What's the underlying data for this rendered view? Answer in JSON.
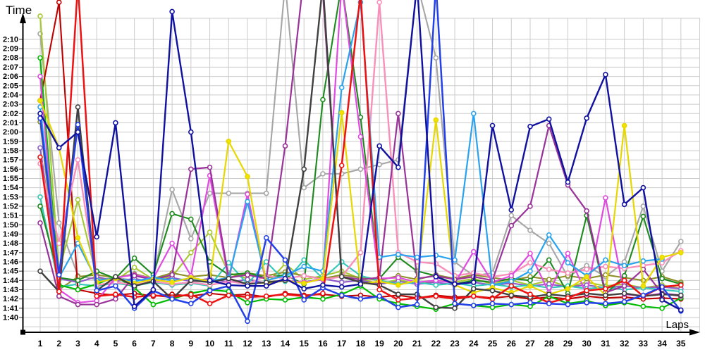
{
  "chart_data": {
    "type": "line",
    "title": "",
    "ylabel": "Time",
    "xlabel": "Laps",
    "legend": "none",
    "grid": true,
    "xlim": [
      1,
      35
    ],
    "ylim": [
      "1:40",
      "2:10"
    ],
    "value_unit": "lap time in total seconds (100 = 1:40, 130 = 2:10); values above 131 run off the top of the plot",
    "x_ticks": [
      "1",
      "2",
      "3",
      "4",
      "5",
      "6",
      "7",
      "8",
      "9",
      "10",
      "11",
      "12",
      "13",
      "14",
      "15",
      "16",
      "17",
      "18",
      "19",
      "20",
      "21",
      "22",
      "23",
      "24",
      "25",
      "26",
      "27",
      "28",
      "29",
      "30",
      "31",
      "32",
      "33",
      "34",
      "35"
    ],
    "y_ticks": [
      "1:40",
      "1:41",
      "1:42",
      "1:43",
      "1:44",
      "1:45",
      "1:46",
      "1:47",
      "1:48",
      "1:49",
      "1:50",
      "1:51",
      "1:52",
      "1:53",
      "1:54",
      "1:55",
      "1:56",
      "1:57",
      "1:58",
      "1:59",
      "2:00",
      "2:01",
      "2:02",
      "2:03",
      "2:04",
      "2:05",
      "2:06",
      "2:07",
      "2:08",
      "2:09",
      "2:10"
    ],
    "series": [
      {
        "name": "gray",
        "color": "#a6a6a6",
        "marker_fill": "#ffffff",
        "width": 2.1,
        "values": [
          130.6,
          110.2,
          104.5,
          104.1,
          104.3,
          104,
          104.2,
          113.8,
          108.5,
          113.4,
          113.4,
          113.4,
          113.4,
          136,
          114,
          115.5,
          115.5,
          116,
          116.5,
          117,
          136,
          128,
          106,
          104.5,
          104.8,
          111,
          109.4,
          108,
          104.4,
          105.6,
          104.4,
          106,
          112,
          105,
          108.2
        ]
      },
      {
        "name": "yellowgreen",
        "color": "#a6c832",
        "marker_fill": "#ffffff",
        "width": 2.1,
        "values": [
          132.5,
          105,
          112.7,
          104.3,
          104,
          105.4,
          104.1,
          104.4,
          107,
          109.2,
          104.8,
          104.2,
          103.6,
          105.8,
          104.1,
          104.5,
          105,
          104.2,
          103.6,
          104.1,
          103.6,
          104,
          103.8,
          104.2,
          103.6,
          104,
          103.5,
          104,
          103.3,
          103.8,
          103.4,
          103.6,
          103.2,
          103.5,
          103.1
        ]
      },
      {
        "name": "olive",
        "color": "#8f8f2a",
        "marker_fill": "#ffffff",
        "width": 2.1,
        "values": [
          121.1,
          103,
          104.4,
          104.6,
          104.3,
          104.7,
          104.2,
          104.8,
          104.4,
          104.6,
          104.3,
          104.8,
          104.5,
          104.9,
          104.5,
          104.2,
          104.6,
          104.3,
          104,
          104.5,
          104.1,
          104.6,
          104.2,
          104.6,
          104.3,
          104,
          104.4,
          104.1,
          104.5,
          104.2,
          104.6,
          104.3,
          104,
          104.4,
          103.8
        ]
      },
      {
        "name": "violet",
        "color": "#8e5ac8",
        "marker_fill": "#ffffff",
        "width": 2.1,
        "values": [
          118.3,
          104.2,
          103.8,
          104.4,
          103.9,
          104.2,
          103.8,
          104.3,
          103.9,
          104.2,
          103.8,
          104.1,
          103.7,
          104,
          103.8,
          104.2,
          103.8,
          104,
          103.6,
          103.9,
          103.6,
          103.8,
          103.5,
          103.8,
          103.5,
          103.7,
          103.4,
          103.6,
          103.3,
          103.5,
          103.2,
          103.4,
          103.2,
          103.3,
          103.1
        ]
      },
      {
        "name": "cyan",
        "color": "#30c8b8",
        "marker_fill": "#ffffff",
        "width": 2.1,
        "values": [
          113,
          103.3,
          103.6,
          103.4,
          103.7,
          103.4,
          103.8,
          103.5,
          103.7,
          103.4,
          105.9,
          103.6,
          106,
          103.9,
          106.2,
          104.2,
          106,
          104.5,
          104,
          103.6,
          103.8,
          103.5,
          103.7,
          103.4,
          103.6,
          103.3,
          103.5,
          103.2,
          103.4,
          103.1,
          103.3,
          103,
          103.2,
          103,
          102.8
        ]
      },
      {
        "name": "darkred",
        "color": "#c00000",
        "marker_fill": "#ffffff",
        "width": 2.1,
        "values": [
          123.4,
          134,
          103,
          102.6,
          102.4,
          102.6,
          102.3,
          102.5,
          102.3,
          102.6,
          102.4,
          102.5,
          102.2,
          102.6,
          102.4,
          102.5,
          102.3,
          102.4,
          102.2,
          102.4,
          102.1,
          102.4,
          102.2,
          102.3,
          102.1,
          102.3,
          102,
          102.2,
          102,
          102.3,
          102.1,
          102.2,
          102,
          102.1,
          102
        ]
      },
      {
        "name": "darkgreen",
        "color": "#1e8a1e",
        "marker_fill": "#ffffff",
        "width": 2.1,
        "values": [
          112,
          104.3,
          104,
          105,
          104.2,
          106.4,
          104.6,
          111.2,
          110.6,
          106,
          104.6,
          104.8,
          104.3,
          104.6,
          103.6,
          123.5,
          136,
          121.6,
          104.2,
          106.5,
          105,
          104.5,
          103.6,
          104,
          103.8,
          104.2,
          104,
          106.2,
          102.6,
          111,
          102.5,
          104.5,
          110.9,
          104.2,
          103.6
        ]
      },
      {
        "name": "green",
        "color": "#00bb00",
        "marker_fill": "#ffffff",
        "width": 2.2,
        "values": [
          128,
          103.5,
          103,
          103.6,
          104.4,
          103.2,
          101.4,
          102,
          102.6,
          103,
          102.8,
          101.6,
          102,
          101.9,
          102.2,
          102,
          102.5,
          103.4,
          102,
          101.5,
          101.2,
          100.9,
          101.5,
          101.3,
          101.1,
          101.4,
          101.2,
          102.3,
          101.5,
          101.8,
          101.3,
          101.6,
          101.2,
          101,
          102.1
        ]
      },
      {
        "name": "pink",
        "color": "#f890ba",
        "marker_fill": "#ffffff",
        "width": 2.4,
        "values": [
          116.6,
          108,
          117,
          103.5,
          103.8,
          103.5,
          103.9,
          103.6,
          103.8,
          103.5,
          103.9,
          103.6,
          104.5,
          104.2,
          104.5,
          104.1,
          104.4,
          107,
          134,
          107,
          106,
          105.8,
          104.5,
          104.8,
          104.4,
          104.7,
          105.9,
          105.2,
          104.8,
          105.2,
          105.5,
          105.3,
          105.6,
          105.9,
          107.2
        ]
      },
      {
        "name": "magenta",
        "color": "#e04ae0",
        "marker_fill": "#ffffff",
        "width": 2.2,
        "values": [
          126,
          103,
          101.6,
          101.8,
          104.3,
          104.6,
          104.2,
          108,
          104.5,
          115.3,
          104,
          113.3,
          103.6,
          104,
          103.8,
          104.1,
          136,
          119.5,
          104.2,
          104.3,
          103.8,
          104,
          103.7,
          107.1,
          103.8,
          104.5,
          106.9,
          102.7,
          106.9,
          102.5,
          112.9,
          102.5,
          102.3,
          102.6,
          102.4
        ]
      },
      {
        "name": "purple",
        "color": "#993399",
        "marker_fill": "#ffffff",
        "width": 2.2,
        "values": [
          110.2,
          102.3,
          101.4,
          101.4,
          102,
          104.5,
          104.1,
          104.6,
          116,
          116.2,
          104.3,
          104.6,
          104.2,
          118.5,
          137,
          135,
          104.4,
          104.1,
          104.3,
          122,
          104.2,
          104.5,
          104.1,
          104.4,
          104,
          109.9,
          112,
          120.7,
          114.3,
          111.5,
          102.7,
          103.4,
          105.2,
          102.6,
          102.3
        ]
      },
      {
        "name": "skyblue",
        "color": "#2aa3ef",
        "marker_fill": "#ffffff",
        "width": 2.2,
        "values": [
          122.7,
          104.3,
          108,
          104,
          104.2,
          103.9,
          104.3,
          104,
          104.2,
          103.9,
          104.3,
          112.5,
          104,
          104.5,
          105.5,
          105,
          124.8,
          134,
          106.5,
          106.8,
          106.5,
          106.7,
          106.2,
          122,
          103.5,
          103.9,
          105,
          108.9,
          105.9,
          104.5,
          106.2,
          105.6,
          106.1,
          106.3,
          null
        ]
      },
      {
        "name": "yellow",
        "color": "#e6d800",
        "marker_fill": "#f2e300",
        "width": 2.2,
        "values": [
          123.4,
          118.3,
          108.6,
          103.8,
          104.2,
          103.7,
          104.1,
          103.8,
          104.3,
          103.9,
          119,
          115.2,
          103.6,
          104,
          103.7,
          104.2,
          122.1,
          103.6,
          103.9,
          103.5,
          104,
          121.3,
          103.5,
          102.7,
          103.2,
          102.7,
          103.4,
          102.5,
          103.1,
          104.4,
          102.4,
          120.7,
          103.4,
          106.5,
          107
        ]
      },
      {
        "name": "black",
        "color": "#404040",
        "marker_fill": "#ffffff",
        "width": 2.4,
        "values": [
          105,
          102.8,
          122.7,
          102.9,
          104.4,
          103.4,
          103.9,
          102,
          104,
          103.8,
          104.2,
          103.6,
          103.8,
          104,
          116,
          136,
          104.4,
          103.8,
          103.5,
          102.5,
          102.5,
          101.1,
          101,
          103.1,
          102.9,
          102.4,
          102.2,
          102.5,
          102.3,
          102.6,
          102.4,
          102.6,
          102.3,
          102.5,
          102.4
        ]
      },
      {
        "name": "red",
        "color": "#ee1111",
        "marker_fill": "#ffffff",
        "width": 2.5,
        "values": [
          117.3,
          102.8,
          136,
          102.3,
          102.5,
          102.2,
          102.4,
          102.2,
          102.5,
          101.5,
          102.4,
          102.2,
          102.3,
          102.5,
          102.3,
          102.6,
          116.4,
          135,
          103,
          101.9,
          102.1,
          102.3,
          102,
          102.3,
          102,
          103.4,
          102.5,
          101.6,
          102.1,
          102.9,
          103.1,
          104,
          102.3,
          103.3,
          103.5
        ]
      },
      {
        "name": "blue",
        "color": "#2440e8",
        "marker_fill": "#ffffff",
        "width": 2.5,
        "values": [
          121.5,
          104.6,
          120.8,
          102.9,
          103.4,
          101,
          102.9,
          102,
          101.5,
          102.9,
          103.4,
          99.6,
          108.6,
          106.2,
          101.9,
          103.2,
          102.4,
          102,
          102.3,
          101.1,
          101.4,
          136,
          101.5,
          101.3,
          101.5,
          101.4,
          101.6,
          101.5,
          101.4,
          101.6,
          101.5,
          101.7,
          102.4,
          103.3,
          100.7
        ]
      },
      {
        "name": "navy",
        "color": "#1111a0",
        "marker_fill": "#ffffff",
        "width": 2.4,
        "values": [
          122,
          118.3,
          120,
          108.7,
          121,
          101.2,
          103,
          133,
          120,
          104,
          103.5,
          103.4,
          103.4,
          104.2,
          103.1,
          103.5,
          103.3,
          103.6,
          118.5,
          116.2,
          136,
          104.4,
          103.6,
          103.8,
          120.7,
          111.6,
          120.6,
          121.4,
          114.6,
          121.5,
          126.2,
          112.2,
          114,
          101.9,
          100.8
        ]
      }
    ]
  }
}
